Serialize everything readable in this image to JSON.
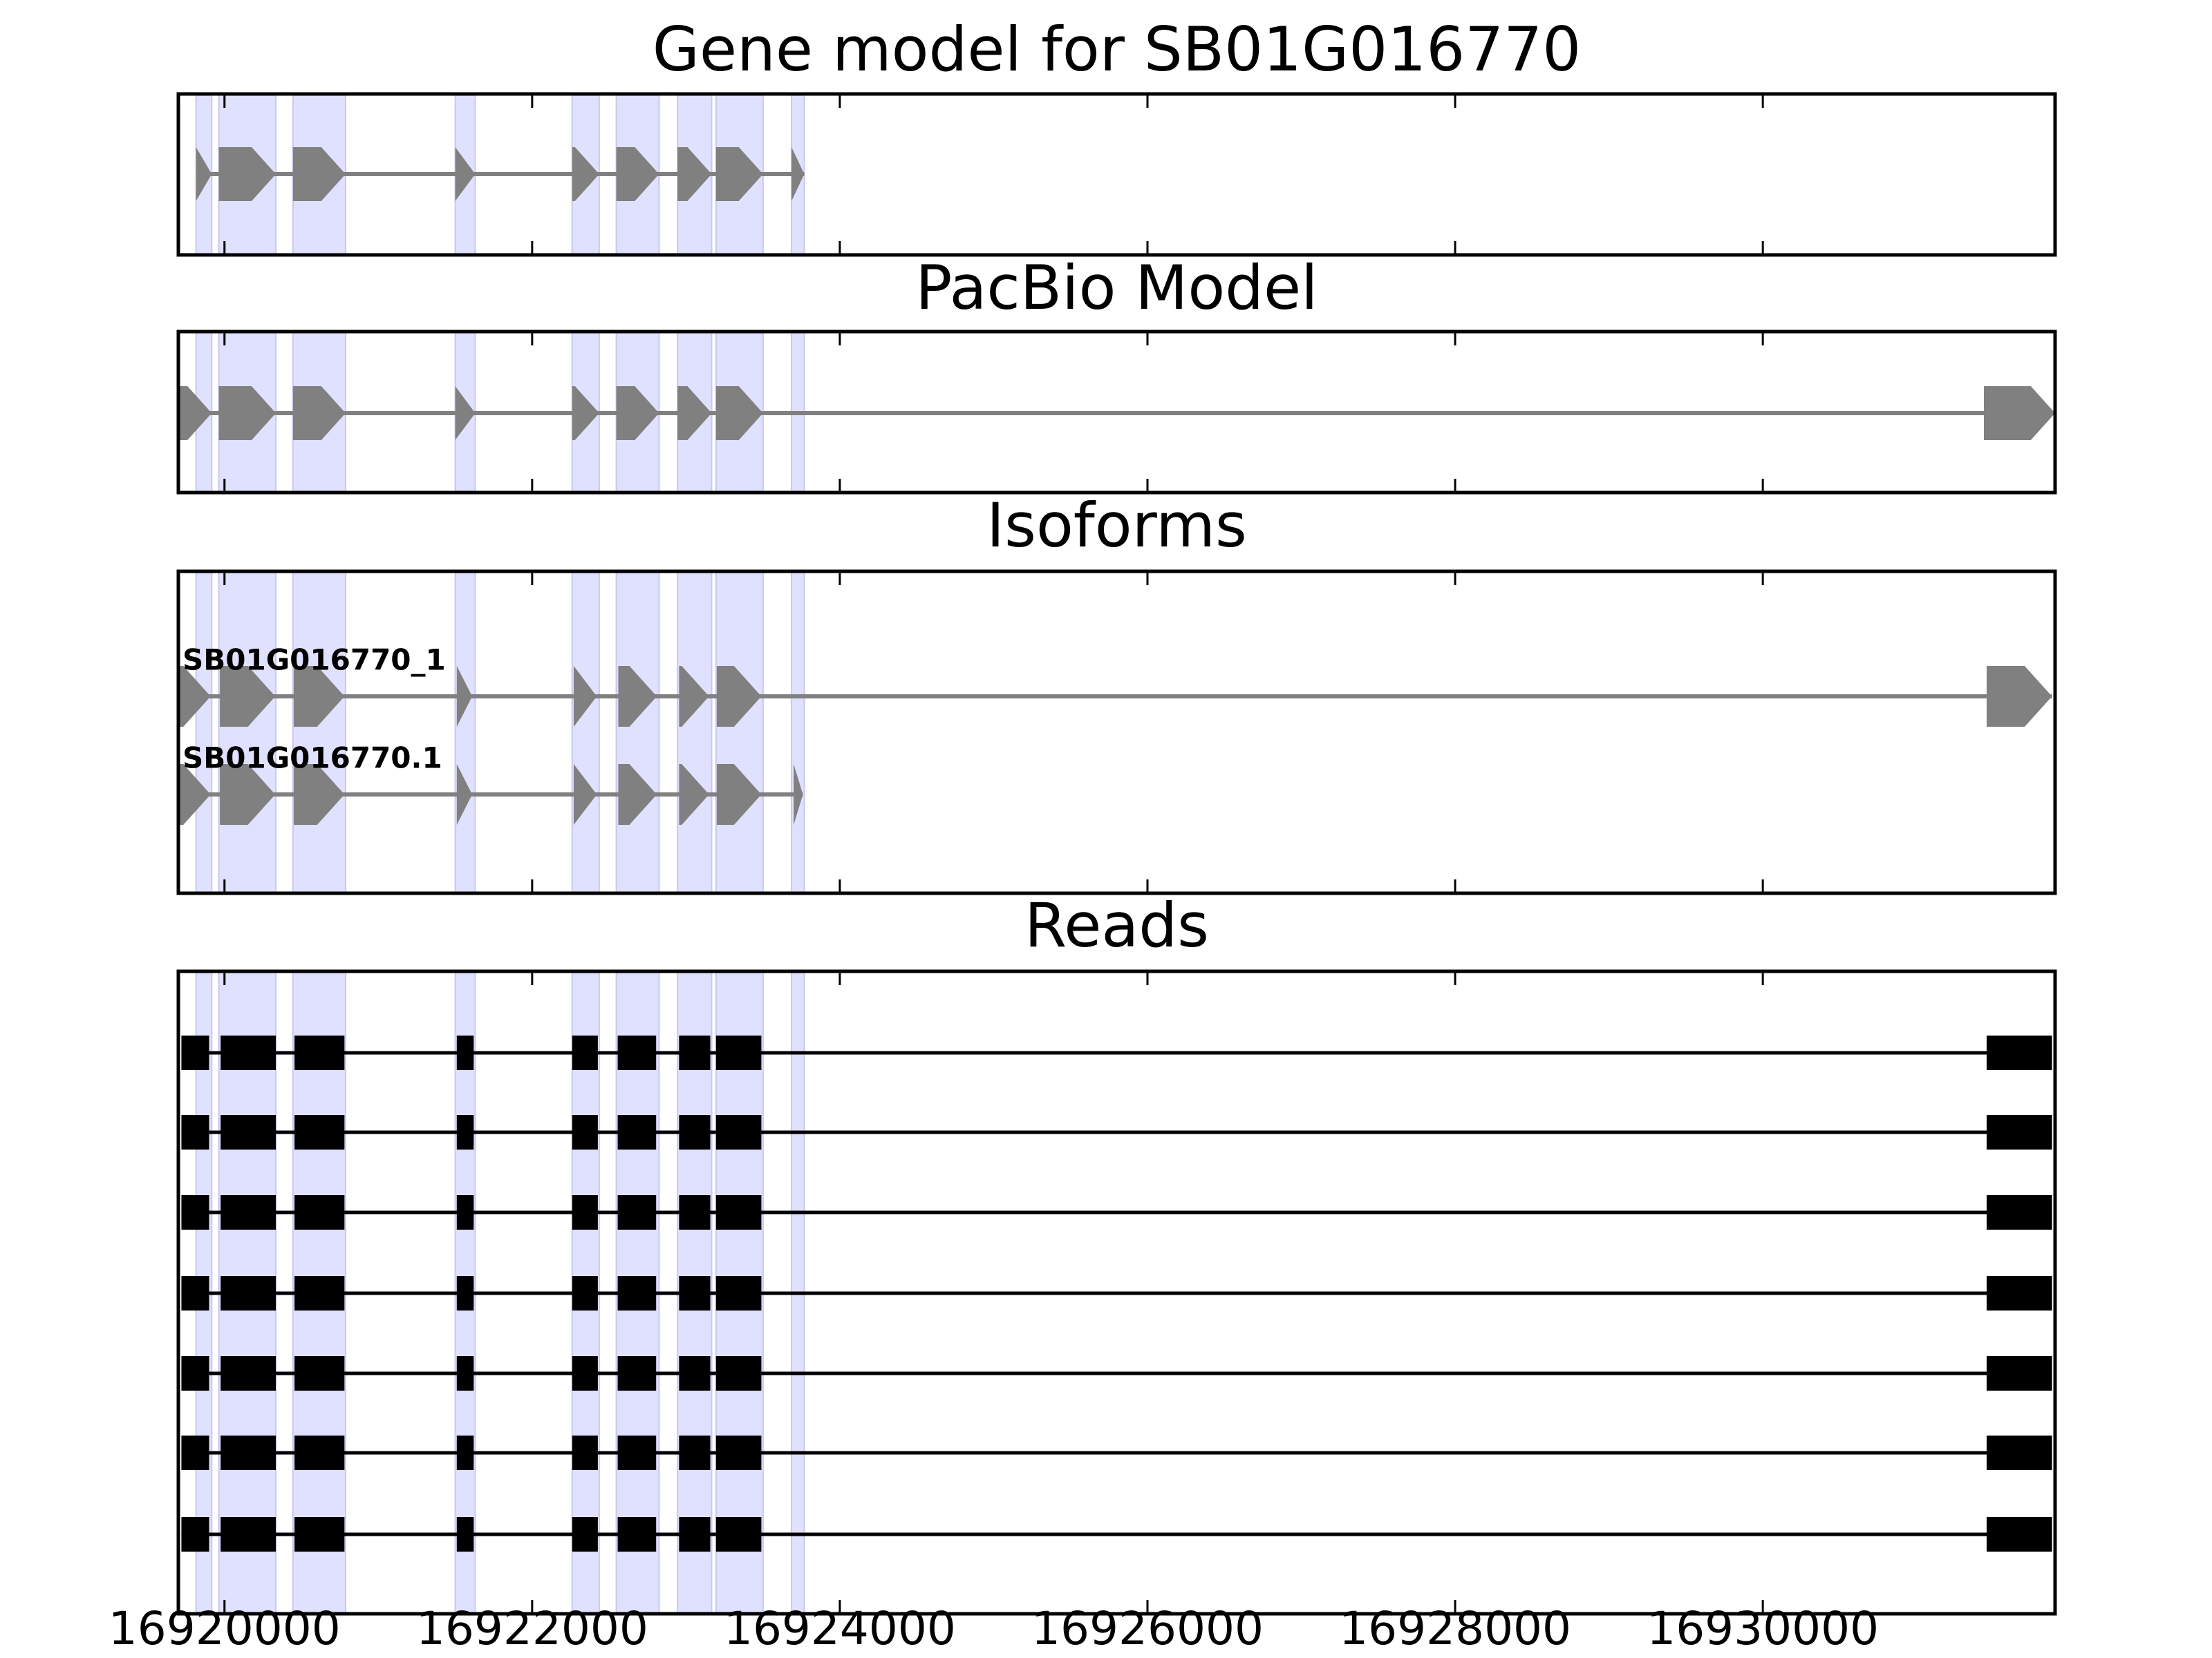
{
  "chart_data": [
    {
      "type": "gene-track",
      "title": "Gene model for SB01G016770",
      "color": "#808080",
      "shade_color": "#e0e0ff",
      "xlim": [
        16919700,
        16931900
      ],
      "xticks": [
        16920000,
        16922000,
        16924000,
        16926000,
        16928000,
        16930000
      ],
      "tracks": [
        {
          "exons": [
            [
              16919815,
              16919917
            ],
            [
              16919963,
              16920334
            ],
            [
              16920445,
              16920787
            ],
            [
              16921500,
              16921630
            ],
            [
              16922260,
              16922436
            ],
            [
              16922547,
              16922825
            ],
            [
              16922945,
              16923167
            ],
            [
              16923195,
              16923501
            ],
            [
              16923686,
              16923769
            ]
          ]
        }
      ]
    },
    {
      "type": "gene-track",
      "title": "PacBio Model",
      "color": "#808080",
      "shade_color": "#e0e0ff",
      "xlim": [
        16919700,
        16931900
      ],
      "xticks": [
        16920000,
        16922000,
        16924000,
        16926000,
        16928000,
        16930000
      ],
      "tracks": [
        {
          "exons": [
            [
              16919700,
              16919917
            ],
            [
              16919963,
              16920334
            ],
            [
              16920445,
              16920787
            ],
            [
              16921500,
              16921630
            ],
            [
              16922260,
              16922436
            ],
            [
              16922547,
              16922825
            ],
            [
              16922945,
              16923167
            ],
            [
              16923195,
              16923501
            ],
            [
              16931437,
              16931900
            ]
          ]
        }
      ]
    },
    {
      "type": "gene-track",
      "title": "Isoforms",
      "color": "#808080",
      "shade_color": "#e0e0ff",
      "xlim": [
        16919700,
        16931900
      ],
      "xticks": [
        16920000,
        16922000,
        16924000,
        16926000,
        16928000,
        16930000
      ],
      "tracks": [
        {
          "name": "SB01G016770_1",
          "exons": [
            [
              16919700,
              16919910
            ],
            [
              16919970,
              16920330
            ],
            [
              16920450,
              16920780
            ],
            [
              16921510,
              16921610
            ],
            [
              16922270,
              16922420
            ],
            [
              16922560,
              16922810
            ],
            [
              16922955,
              16923150
            ],
            [
              16923200,
              16923490
            ],
            [
              16931455,
              16931880
            ]
          ]
        },
        {
          "name": "SB01G016770.1",
          "exons": [
            [
              16919700,
              16919910
            ],
            [
              16919970,
              16920330
            ],
            [
              16920450,
              16920780
            ],
            [
              16921510,
              16921610
            ],
            [
              16922270,
              16922420
            ],
            [
              16922560,
              16922810
            ],
            [
              16922955,
              16923150
            ],
            [
              16923200,
              16923490
            ],
            [
              16923700,
              16923760
            ]
          ]
        }
      ]
    },
    {
      "type": "read-track",
      "title": "Reads",
      "color": "#000000",
      "shade_color": "#e0e0ff",
      "xlim": [
        16919700,
        16931900
      ],
      "xticks": [
        16920000,
        16922000,
        16924000,
        16926000,
        16928000,
        16930000
      ],
      "tracks": [
        {
          "exons": [
            [
              16919720,
              16919900
            ],
            [
              16919975,
              16920334
            ],
            [
              16920455,
              16920780
            ],
            [
              16921510,
              16921620
            ],
            [
              16922260,
              16922427
            ],
            [
              16922556,
              16922806
            ],
            [
              16922955,
              16923158
            ],
            [
              16923195,
              16923490
            ],
            [
              16931455,
              16931880
            ]
          ]
        },
        {
          "exons": [
            [
              16919720,
              16919900
            ],
            [
              16919975,
              16920334
            ],
            [
              16920455,
              16920780
            ],
            [
              16921510,
              16921620
            ],
            [
              16922260,
              16922427
            ],
            [
              16922556,
              16922806
            ],
            [
              16922955,
              16923158
            ],
            [
              16923195,
              16923490
            ],
            [
              16931455,
              16931880
            ]
          ]
        },
        {
          "exons": [
            [
              16919720,
              16919900
            ],
            [
              16919975,
              16920334
            ],
            [
              16920455,
              16920780
            ],
            [
              16921510,
              16921620
            ],
            [
              16922260,
              16922427
            ],
            [
              16922556,
              16922806
            ],
            [
              16922955,
              16923158
            ],
            [
              16923195,
              16923490
            ],
            [
              16931455,
              16931880
            ]
          ]
        },
        {
          "exons": [
            [
              16919720,
              16919900
            ],
            [
              16919975,
              16920334
            ],
            [
              16920455,
              16920780
            ],
            [
              16921510,
              16921620
            ],
            [
              16922260,
              16922427
            ],
            [
              16922556,
              16922806
            ],
            [
              16922955,
              16923158
            ],
            [
              16923195,
              16923490
            ],
            [
              16931455,
              16931880
            ]
          ]
        },
        {
          "exons": [
            [
              16919720,
              16919900
            ],
            [
              16919975,
              16920334
            ],
            [
              16920455,
              16920780
            ],
            [
              16921510,
              16921620
            ],
            [
              16922260,
              16922427
            ],
            [
              16922556,
              16922806
            ],
            [
              16922955,
              16923158
            ],
            [
              16923195,
              16923490
            ],
            [
              16931455,
              16931880
            ]
          ]
        },
        {
          "exons": [
            [
              16919720,
              16919900
            ],
            [
              16919975,
              16920334
            ],
            [
              16920455,
              16920780
            ],
            [
              16921510,
              16921620
            ],
            [
              16922260,
              16922427
            ],
            [
              16922556,
              16922806
            ],
            [
              16922955,
              16923158
            ],
            [
              16923195,
              16923490
            ],
            [
              16931455,
              16931880
            ]
          ]
        },
        {
          "exons": [
            [
              16919720,
              16919900
            ],
            [
              16919975,
              16920334
            ],
            [
              16920455,
              16920780
            ],
            [
              16921510,
              16921620
            ],
            [
              16922260,
              16922427
            ],
            [
              16922556,
              16922806
            ],
            [
              16922955,
              16923158
            ],
            [
              16923195,
              16923490
            ],
            [
              16931455,
              16931880
            ]
          ]
        }
      ]
    }
  ]
}
